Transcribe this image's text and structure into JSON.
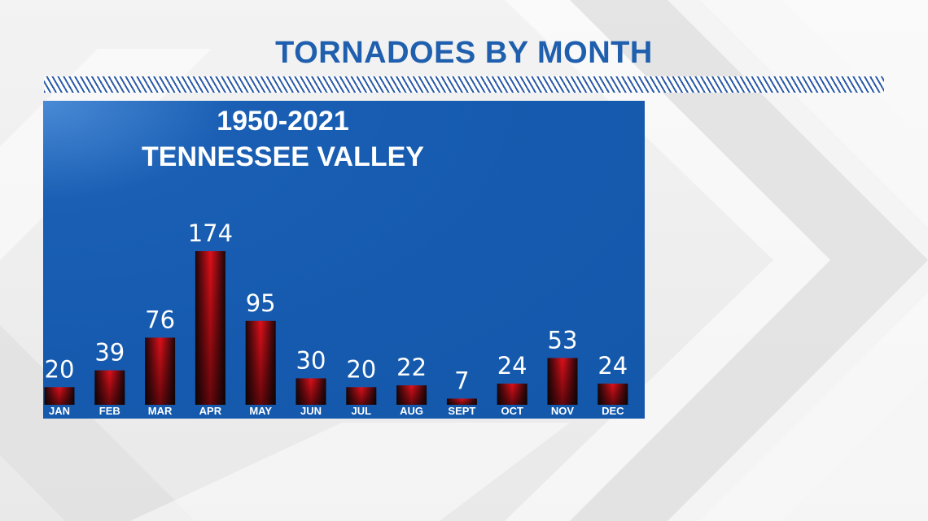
{
  "title": "TORNADOES BY MONTH",
  "chart_data": {
    "type": "bar",
    "title": "1950-2021",
    "subtitle": "TENNESSEE VALLEY",
    "xlabel": "",
    "ylabel": "",
    "categories": [
      "JAN",
      "FEB",
      "MAR",
      "APR",
      "MAY",
      "JUN",
      "JUL",
      "AUG",
      "SEPT",
      "OCT",
      "NOV",
      "DEC"
    ],
    "values": [
      20,
      39,
      76,
      174,
      95,
      30,
      20,
      22,
      7,
      24,
      53,
      24
    ],
    "ylim": [
      0,
      174
    ],
    "grid": false,
    "data_labels": true
  },
  "colors": {
    "title": "#1f5fae",
    "panel": "#155aae",
    "bar_center": "#e0101a",
    "bar_edge": "#1a0608",
    "text": "#ffffff"
  }
}
